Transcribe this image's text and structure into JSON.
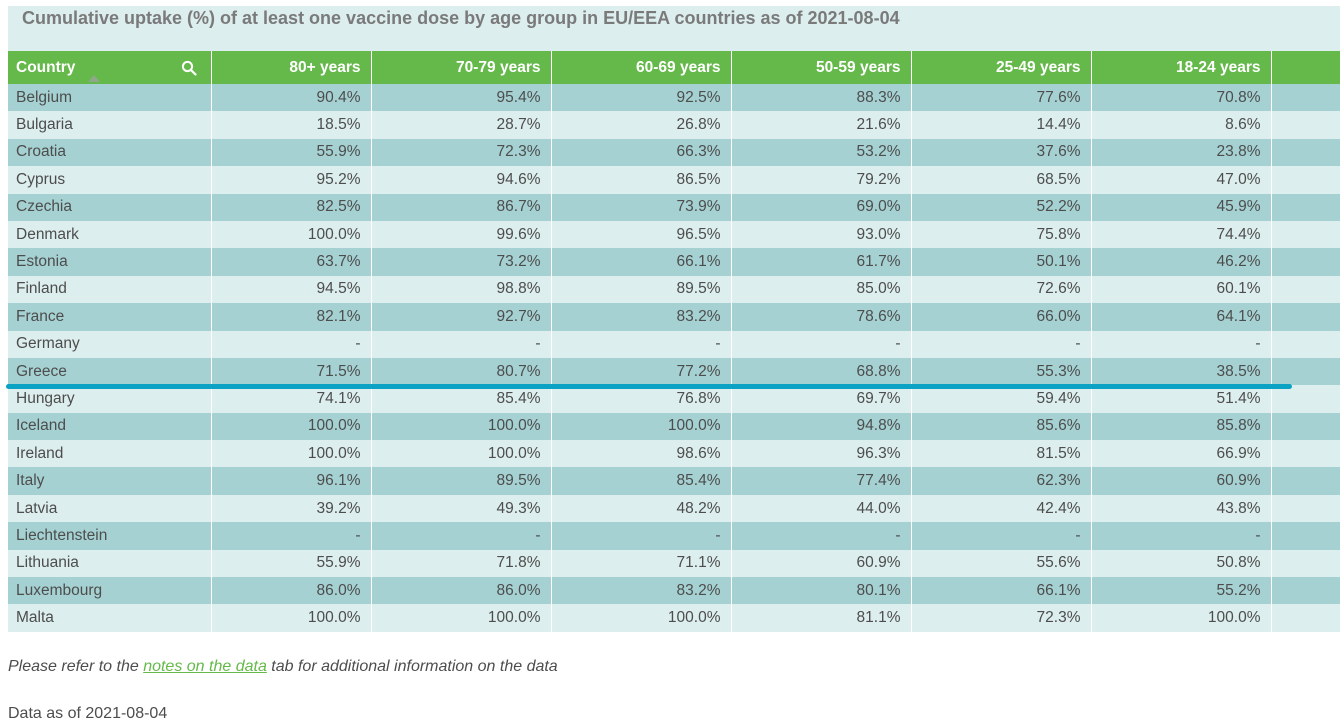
{
  "title": "Cumulative uptake (%) of at least one vaccine dose by age group in EU/EEA countries as of 2021-08-04",
  "colors": {
    "header": "#65b94a",
    "row_dark": "#a5d1d2",
    "row_light": "#dceeed",
    "marker": "#0ba2c4",
    "link": "#65b94a"
  },
  "header": {
    "country": "Country",
    "search_icon": "search-icon",
    "sort_icon": "sort-ascending-icon",
    "columns": [
      "80+ years",
      "70-79 years",
      "60-69 years",
      "50-59 years",
      "25-49 years",
      "18-24 years"
    ]
  },
  "rows": [
    {
      "country": "Belgium",
      "values": [
        "90.4%",
        "95.4%",
        "92.5%",
        "88.3%",
        "77.6%",
        "70.8%"
      ]
    },
    {
      "country": "Bulgaria",
      "values": [
        "18.5%",
        "28.7%",
        "26.8%",
        "21.6%",
        "14.4%",
        "8.6%"
      ]
    },
    {
      "country": "Croatia",
      "values": [
        "55.9%",
        "72.3%",
        "66.3%",
        "53.2%",
        "37.6%",
        "23.8%"
      ]
    },
    {
      "country": "Cyprus",
      "values": [
        "95.2%",
        "94.6%",
        "86.5%",
        "79.2%",
        "68.5%",
        "47.0%"
      ]
    },
    {
      "country": "Czechia",
      "values": [
        "82.5%",
        "86.7%",
        "73.9%",
        "69.0%",
        "52.2%",
        "45.9%"
      ]
    },
    {
      "country": "Denmark",
      "values": [
        "100.0%",
        "99.6%",
        "96.5%",
        "93.0%",
        "75.8%",
        "74.4%"
      ]
    },
    {
      "country": "Estonia",
      "values": [
        "63.7%",
        "73.2%",
        "66.1%",
        "61.7%",
        "50.1%",
        "46.2%"
      ]
    },
    {
      "country": "Finland",
      "values": [
        "94.5%",
        "98.8%",
        "89.5%",
        "85.0%",
        "72.6%",
        "60.1%"
      ]
    },
    {
      "country": "France",
      "values": [
        "82.1%",
        "92.7%",
        "83.2%",
        "78.6%",
        "66.0%",
        "64.1%"
      ]
    },
    {
      "country": "Germany",
      "values": [
        "-",
        "-",
        "-",
        "-",
        "-",
        "-"
      ]
    },
    {
      "country": "Greece",
      "values": [
        "71.5%",
        "80.7%",
        "77.2%",
        "68.8%",
        "55.3%",
        "38.5%"
      ]
    },
    {
      "country": "Hungary",
      "values": [
        "74.1%",
        "85.4%",
        "76.8%",
        "69.7%",
        "59.4%",
        "51.4%"
      ]
    },
    {
      "country": "Iceland",
      "values": [
        "100.0%",
        "100.0%",
        "100.0%",
        "94.8%",
        "85.6%",
        "85.8%"
      ]
    },
    {
      "country": "Ireland",
      "values": [
        "100.0%",
        "100.0%",
        "98.6%",
        "96.3%",
        "81.5%",
        "66.9%"
      ]
    },
    {
      "country": "Italy",
      "values": [
        "96.1%",
        "89.5%",
        "85.4%",
        "77.4%",
        "62.3%",
        "60.9%"
      ]
    },
    {
      "country": "Latvia",
      "values": [
        "39.2%",
        "49.3%",
        "48.2%",
        "44.0%",
        "42.4%",
        "43.8%"
      ]
    },
    {
      "country": "Liechtenstein",
      "values": [
        "-",
        "-",
        "-",
        "-",
        "-",
        "-"
      ]
    },
    {
      "country": "Lithuania",
      "values": [
        "55.9%",
        "71.8%",
        "71.1%",
        "60.9%",
        "55.6%",
        "50.8%"
      ]
    },
    {
      "country": "Luxembourg",
      "values": [
        "86.0%",
        "86.0%",
        "83.2%",
        "80.1%",
        "66.1%",
        "55.2%"
      ]
    },
    {
      "country": "Malta",
      "values": [
        "100.0%",
        "100.0%",
        "100.0%",
        "81.1%",
        "72.3%",
        "100.0%"
      ]
    }
  ],
  "note": {
    "prefix": "Please refer to the ",
    "link": "notes on the data",
    "suffix": " tab for additional information on the data"
  },
  "data_as_of": "Data as of 2021-08-04",
  "chart_data": {
    "type": "table",
    "title": "Cumulative uptake (%) of at least one vaccine dose by age group in EU/EEA countries as of 2021-08-04",
    "columns": [
      "Country",
      "80+ years",
      "70-79 years",
      "60-69 years",
      "50-59 years",
      "25-49 years",
      "18-24 years"
    ],
    "rows": [
      [
        "Belgium",
        90.4,
        95.4,
        92.5,
        88.3,
        77.6,
        70.8
      ],
      [
        "Bulgaria",
        18.5,
        28.7,
        26.8,
        21.6,
        14.4,
        8.6
      ],
      [
        "Croatia",
        55.9,
        72.3,
        66.3,
        53.2,
        37.6,
        23.8
      ],
      [
        "Cyprus",
        95.2,
        94.6,
        86.5,
        79.2,
        68.5,
        47.0
      ],
      [
        "Czechia",
        82.5,
        86.7,
        73.9,
        69.0,
        52.2,
        45.9
      ],
      [
        "Denmark",
        100.0,
        99.6,
        96.5,
        93.0,
        75.8,
        74.4
      ],
      [
        "Estonia",
        63.7,
        73.2,
        66.1,
        61.7,
        50.1,
        46.2
      ],
      [
        "Finland",
        94.5,
        98.8,
        89.5,
        85.0,
        72.6,
        60.1
      ],
      [
        "France",
        82.1,
        92.7,
        83.2,
        78.6,
        66.0,
        64.1
      ],
      [
        "Germany",
        null,
        null,
        null,
        null,
        null,
        null
      ],
      [
        "Greece",
        71.5,
        80.7,
        77.2,
        68.8,
        55.3,
        38.5
      ],
      [
        "Hungary",
        74.1,
        85.4,
        76.8,
        69.7,
        59.4,
        51.4
      ],
      [
        "Iceland",
        100.0,
        100.0,
        100.0,
        94.8,
        85.6,
        85.8
      ],
      [
        "Ireland",
        100.0,
        100.0,
        98.6,
        96.3,
        81.5,
        66.9
      ],
      [
        "Italy",
        96.1,
        89.5,
        85.4,
        77.4,
        62.3,
        60.9
      ],
      [
        "Latvia",
        39.2,
        49.3,
        48.2,
        44.0,
        42.4,
        43.8
      ],
      [
        "Liechtenstein",
        null,
        null,
        null,
        null,
        null,
        null
      ],
      [
        "Lithuania",
        55.9,
        71.8,
        71.1,
        60.9,
        55.6,
        50.8
      ],
      [
        "Luxembourg",
        86.0,
        86.0,
        83.2,
        80.1,
        66.1,
        55.2
      ],
      [
        "Malta",
        100.0,
        100.0,
        100.0,
        81.1,
        72.3,
        100.0
      ]
    ],
    "units": "%"
  }
}
